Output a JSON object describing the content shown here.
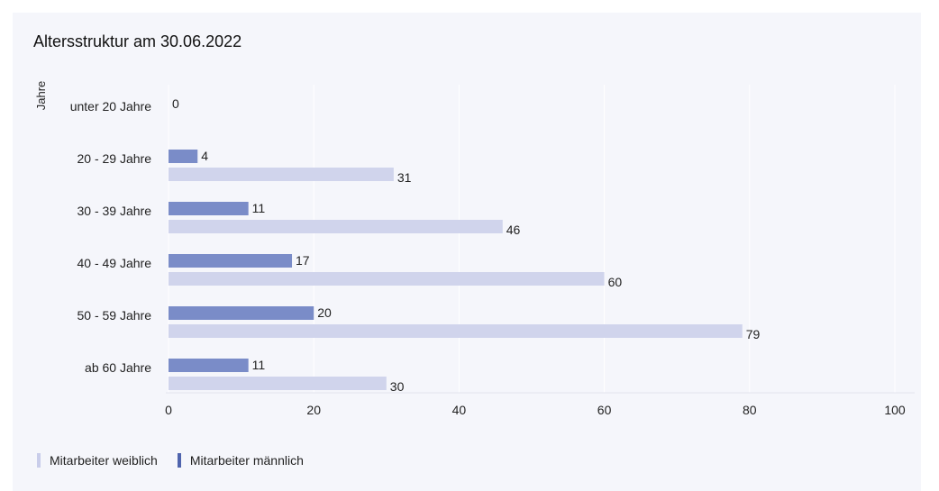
{
  "chart_data": {
    "type": "bar",
    "orientation": "horizontal",
    "title": "Altersstruktur am 30.06.2022",
    "ylabel": "Jahre",
    "xlabel": "",
    "categories": [
      "unter 20 Jahre",
      "20 - 29 Jahre",
      "30 - 39 Jahre",
      "40 - 49 Jahre",
      "50 - 59 Jahre",
      "ab 60 Jahre"
    ],
    "series": [
      {
        "name": "Mitarbeiter männlich",
        "color": "#7a8cc8",
        "values": [
          0,
          4,
          11,
          17,
          20,
          11
        ]
      },
      {
        "name": "Mitarbeiter weiblich",
        "color": "#d0d4ec",
        "values": [
          null,
          31,
          46,
          60,
          79,
          30
        ]
      }
    ],
    "xlim": [
      0,
      100
    ],
    "xticks": [
      0,
      20,
      40,
      60,
      80,
      100
    ],
    "grid": true,
    "legend_position": "bottom-left",
    "legend_order": [
      "Mitarbeiter weiblich",
      "Mitarbeiter männlich"
    ]
  }
}
